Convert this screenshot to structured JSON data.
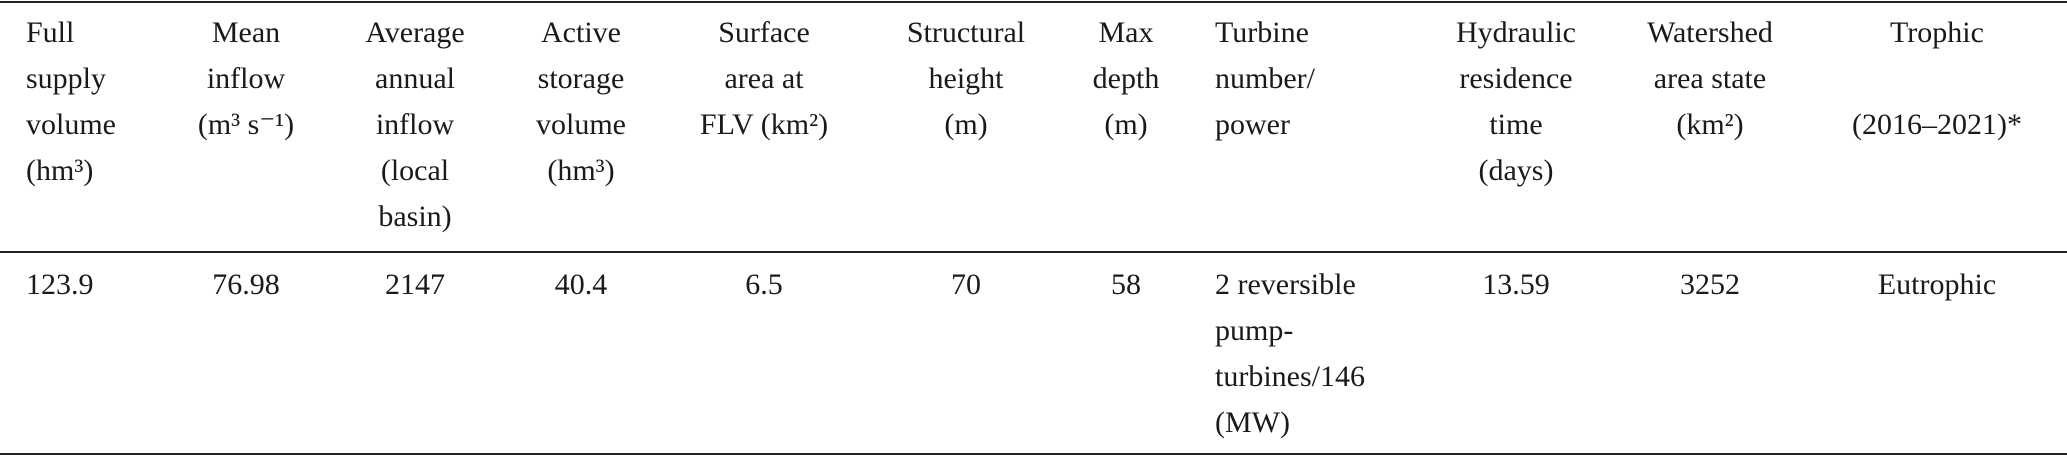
{
  "table": {
    "header": [
      [
        "Full",
        "supply",
        "volume",
        "(hm³)"
      ],
      [
        "Mean",
        "inflow",
        "(m³ s⁻¹)"
      ],
      [
        "Average",
        "annual",
        "inflow",
        "(local",
        "basin)"
      ],
      [
        "Active",
        "storage",
        "volume",
        "(hm³)"
      ],
      [
        "Surface",
        "area at",
        "FLV (km²)"
      ],
      [
        "Structural",
        "height",
        "(m)"
      ],
      [
        "Max",
        "depth",
        "(m)"
      ],
      [
        "Turbine",
        "number/",
        "power"
      ],
      [
        "Hydraulic",
        "residence",
        "time",
        "(days)"
      ],
      [
        "Watershed",
        "area state",
        "(km²)"
      ],
      [
        "Trophic",
        "(2016–2021)*"
      ]
    ],
    "rows": [
      [
        [
          "123.9"
        ],
        [
          "76.98"
        ],
        [
          "2147"
        ],
        [
          "40.4"
        ],
        [
          "6.5"
        ],
        [
          "70"
        ],
        [
          "58"
        ],
        [
          "2 reversible",
          "pump-",
          "turbines/146",
          "(MW)"
        ],
        [
          "13.59"
        ],
        [
          "3252"
        ],
        [
          "Eutrophic"
        ]
      ]
    ]
  }
}
